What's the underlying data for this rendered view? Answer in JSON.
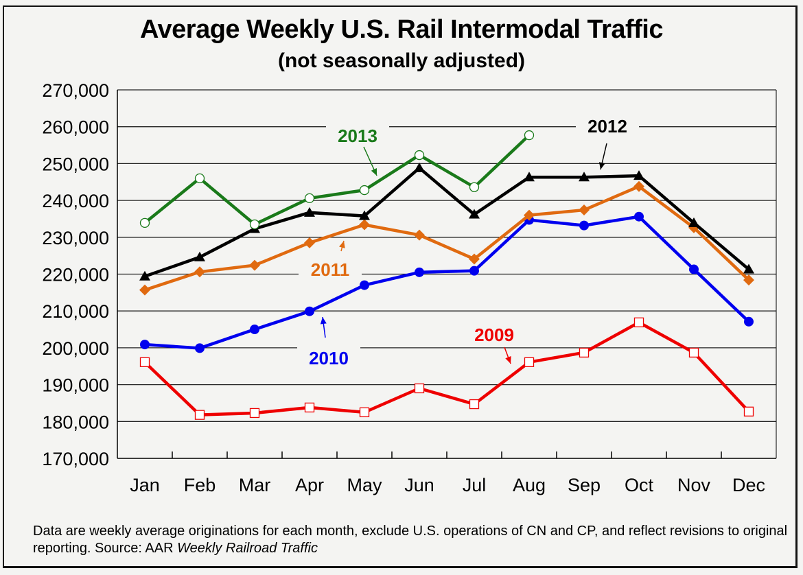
{
  "chart_data": {
    "type": "line",
    "title": "Average Weekly U.S. Rail Intermodal Traffic",
    "subtitle": "(not seasonally adjusted)",
    "xlabel": "",
    "ylabel": "",
    "ylim": [
      170000,
      270000
    ],
    "yticks": [
      170000,
      180000,
      190000,
      200000,
      210000,
      220000,
      230000,
      240000,
      250000,
      260000,
      270000
    ],
    "ytick_labels": [
      "170,000",
      "180,000",
      "190,000",
      "200,000",
      "210,000",
      "220,000",
      "230,000",
      "240,000",
      "250,000",
      "260,000",
      "270,000"
    ],
    "grid": true,
    "categories": [
      "Jan",
      "Feb",
      "Mar",
      "Apr",
      "May",
      "Jun",
      "Jul",
      "Aug",
      "Sep",
      "Oct",
      "Nov",
      "Dec"
    ],
    "series": [
      {
        "name": "2009",
        "color": "#ee0000",
        "marker": "open-square",
        "values": [
          196100,
          181800,
          182300,
          183800,
          182500,
          189000,
          184700,
          196100,
          198700,
          206900,
          198700,
          182700
        ]
      },
      {
        "name": "2010",
        "color": "#0000ee",
        "marker": "filled-circle",
        "values": [
          200900,
          199900,
          205000,
          209900,
          217000,
          220500,
          220900,
          234700,
          233200,
          235600,
          221300,
          207100
        ]
      },
      {
        "name": "2011",
        "color": "#e06a10",
        "marker": "filled-diamond",
        "values": [
          215700,
          220600,
          222400,
          228500,
          233400,
          230600,
          224100,
          236000,
          237400,
          243800,
          232600,
          218400
        ]
      },
      {
        "name": "2012",
        "color": "#000000",
        "marker": "filled-triangle",
        "values": [
          219400,
          224600,
          232300,
          236700,
          235800,
          248800,
          236200,
          246300,
          246300,
          246700,
          233900,
          221300
        ]
      },
      {
        "name": "2013",
        "color": "#1a7a1a",
        "marker": "open-circle",
        "values": [
          233900,
          246000,
          233500,
          240600,
          242800,
          252300,
          243600,
          257700,
          null,
          null,
          null,
          null
        ]
      }
    ],
    "annotations": [
      {
        "text": "2013",
        "series": "2013",
        "points_to": "May-Jun segment"
      },
      {
        "text": "2012",
        "series": "2012",
        "points_to": "Sep"
      },
      {
        "text": "2011",
        "series": "2011",
        "points_to": "Apr-May segment"
      },
      {
        "text": "2010",
        "series": "2010",
        "points_to": "Apr"
      },
      {
        "text": "2009",
        "series": "2009",
        "points_to": "Jul-Aug segment"
      }
    ],
    "legend": "none (inline labels)"
  },
  "footnote": {
    "text": "Data are weekly average originations for each month, exclude U.S. operations of CN and CP, and reflect revisions to original reporting.  Source: AAR ",
    "source_italic": "Weekly Railroad Traffic"
  }
}
